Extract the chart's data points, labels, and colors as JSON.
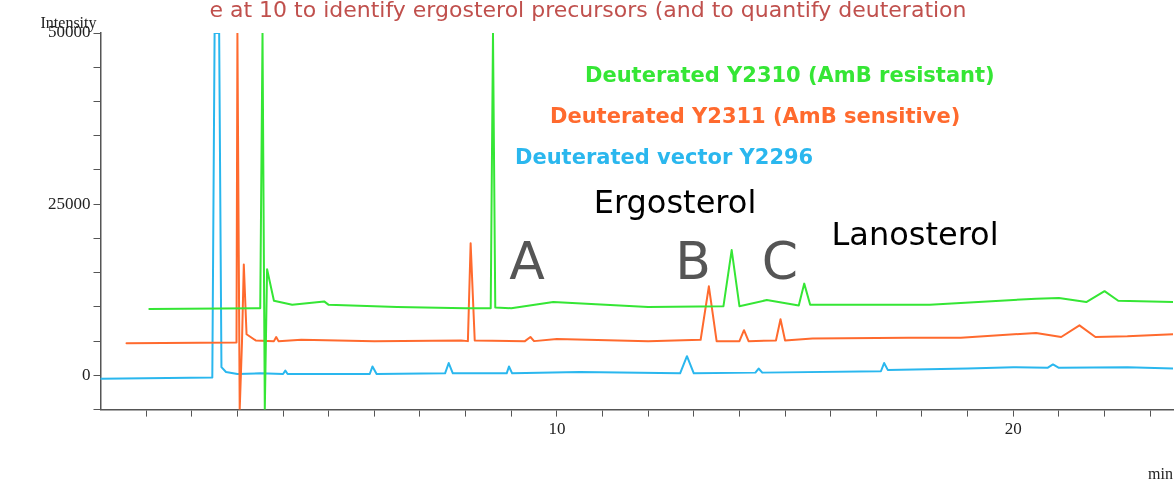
{
  "chart_data": {
    "type": "line",
    "title": "e at 10 to identify ergosterol precursors (and to quantify deuteration",
    "xlabel": "min",
    "ylabel": "Intensity",
    "xlim": [
      0,
      23.5
    ],
    "xticks": [
      {
        "value": 1,
        "label": null
      },
      {
        "value": 2,
        "label": null
      },
      {
        "value": 3,
        "label": null
      },
      {
        "value": 4,
        "label": null
      },
      {
        "value": 5,
        "label": null
      },
      {
        "value": 6,
        "label": null
      },
      {
        "value": 7,
        "label": null
      },
      {
        "value": 8,
        "label": null
      },
      {
        "value": 9,
        "label": null
      },
      10,
      {
        "value": 11,
        "label": null
      },
      {
        "value": 12,
        "label": null
      },
      {
        "value": 13,
        "label": null
      },
      {
        "value": 14,
        "label": null
      },
      {
        "value": 15,
        "label": null
      },
      {
        "value": 16,
        "label": null
      },
      {
        "value": 17,
        "label": null
      },
      {
        "value": 18,
        "label": null
      },
      {
        "value": 19,
        "label": null
      },
      20,
      {
        "value": 21,
        "label": null
      },
      {
        "value": 22,
        "label": null
      },
      {
        "value": 23,
        "label": null
      }
    ],
    "ylim": [
      -5000,
      50000
    ],
    "yticks": [
      {
        "value": -5000,
        "label": null
      },
      0,
      {
        "value": 5000,
        "label": null
      },
      {
        "value": 10000,
        "label": null
      },
      {
        "value": 15000,
        "label": null
      },
      {
        "value": 20000,
        "label": null
      },
      25000,
      {
        "value": 30000,
        "label": null
      },
      {
        "value": 35000,
        "label": null
      },
      {
        "value": 40000,
        "label": null
      },
      {
        "value": 45000,
        "label": null
      },
      50000
    ],
    "grid": false,
    "legend": "top",
    "marker": "none",
    "line_style": "solid",
    "series": [
      {
        "name": "Deuterated Y2310 (AmB resistant)",
        "color": "#35e635",
        "x": [
          1.07,
          3.5,
          3.55,
          3.6,
          3.65,
          3.8,
          4.2,
          4.9,
          5.0,
          6.5,
          8.0,
          8.55,
          8.6,
          8.65,
          9.0,
          9.92,
          12.0,
          13.65,
          13.83,
          14.0,
          14.6,
          15.3,
          15.42,
          15.55,
          18.17,
          20.5,
          21.0,
          21.6,
          22.0,
          22.3,
          23.5
        ],
        "values": [
          9700,
          9800,
          50000,
          -5000,
          15500,
          10900,
          10300,
          10800,
          10300,
          10000,
          9800,
          9800,
          50000,
          9900,
          9800,
          10700,
          10000,
          10100,
          18300,
          10100,
          11000,
          10200,
          13400,
          10300,
          10300,
          11200,
          11300,
          10700,
          12300,
          10900,
          10700
        ]
      },
      {
        "name": "Deuterated Y2311 (AmB sensitive)",
        "color": "#ff6a2e",
        "x": [
          0.57,
          2.98,
          3.0,
          3.05,
          3.1,
          3.14,
          3.2,
          3.4,
          3.8,
          3.85,
          3.9,
          4.4,
          6.0,
          7.9,
          8.05,
          8.11,
          8.2,
          9.3,
          9.42,
          9.5,
          10.0,
          12.0,
          13.15,
          13.33,
          13.5,
          14.0,
          14.1,
          14.2,
          14.8,
          14.9,
          15.0,
          15.6,
          17.7,
          18.85,
          20.5,
          21.05,
          21.45,
          21.8,
          22.5,
          23.5
        ],
        "values": [
          4700,
          4800,
          50000,
          -5000,
          4800,
          16200,
          6000,
          5100,
          5000,
          5600,
          5000,
          5200,
          5000,
          5100,
          5000,
          19300,
          5100,
          5000,
          5600,
          5000,
          5300,
          5000,
          5200,
          13000,
          5000,
          5000,
          6600,
          5000,
          5100,
          8200,
          5100,
          5400,
          5500,
          5500,
          6200,
          5600,
          7300,
          5600,
          5700,
          6000
        ]
      },
      {
        "name": "Deuterated vector Y2296",
        "color": "#2ab7ee",
        "x": [
          0.0,
          2.45,
          2.5,
          2.55,
          2.6,
          2.65,
          2.75,
          3.0,
          3.5,
          4.0,
          4.05,
          4.1,
          5.9,
          5.96,
          6.05,
          7.55,
          7.63,
          7.72,
          8.9,
          8.95,
          9.02,
          10.5,
          12.7,
          12.85,
          13.0,
          14.35,
          14.42,
          14.5,
          17.1,
          17.17,
          17.25,
          19.0,
          20.0,
          20.75,
          20.87,
          21.0,
          22.5,
          23.5
        ],
        "values": [
          -500,
          -300,
          50000,
          50000,
          50000,
          1200,
          500,
          200,
          300,
          200,
          700,
          200,
          200,
          1300,
          200,
          300,
          1800,
          300,
          300,
          1300,
          300,
          500,
          300,
          2800,
          300,
          400,
          1000,
          400,
          600,
          1800,
          800,
          1000,
          1200,
          1100,
          1600,
          1100,
          1200,
          1000
        ]
      }
    ],
    "annotations": [
      "A",
      "B",
      "C",
      "Ergosterol",
      "Lanosterol"
    ]
  }
}
